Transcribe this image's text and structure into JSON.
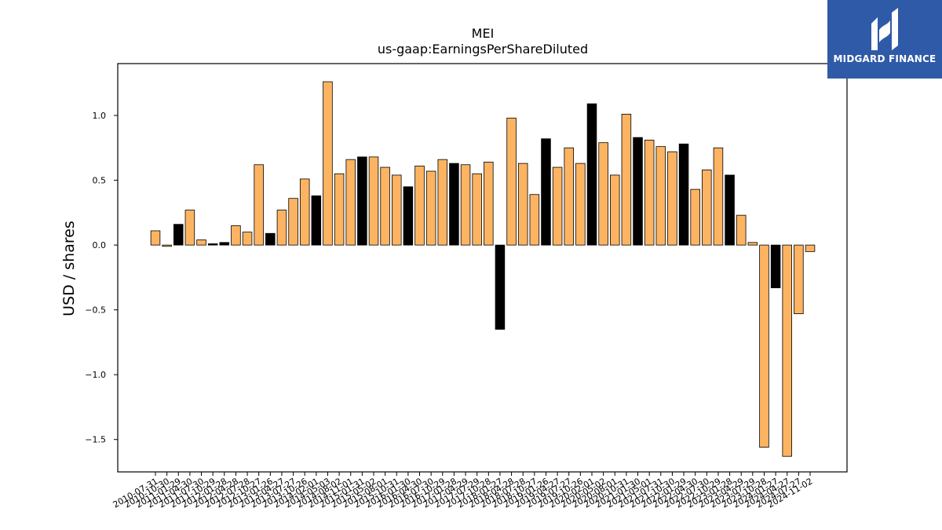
{
  "chart_data": {
    "type": "bar",
    "title": "MEI",
    "subtitle": "us-gaap:EarningsPerShareDiluted",
    "xlabel": "",
    "ylabel": "USD / shares",
    "ylim": [
      -1.75,
      1.4
    ],
    "yticks": [
      -1.5,
      -1.0,
      -0.5,
      0.0,
      0.5,
      1.0
    ],
    "ytick_labels": [
      "−1.5",
      "−1.0",
      "−0.5",
      "0.0",
      "0.5",
      "1.0"
    ],
    "grid": false,
    "colors": {
      "orange": "#fdb462",
      "black": "#000000",
      "edge": "#000000"
    },
    "categories": [
      "2010-07-31",
      "2010-10-30",
      "2011-01-29",
      "2011-04-30",
      "2011-07-30",
      "2011-10-29",
      "2012-01-28",
      "2012-04-28",
      "2012-07-28",
      "2012-10-27",
      "2013-01-26",
      "2013-04-27",
      "2013-07-27",
      "2013-10-26",
      "2014-02-01",
      "2014-05-03",
      "2014-08-02",
      "2014-11-01",
      "2015-01-31",
      "2015-05-02",
      "2015-08-01",
      "2015-10-31",
      "2016-01-30",
      "2016-04-30",
      "2016-07-30",
      "2016-10-29",
      "2017-01-28",
      "2017-04-29",
      "2017-07-29",
      "2017-10-28",
      "2018-01-27",
      "2018-04-28",
      "2018-07-28",
      "2018-10-27",
      "2019-01-26",
      "2019-04-27",
      "2019-07-27",
      "2019-10-26",
      "2020-02-01",
      "2020-05-02",
      "2020-08-01",
      "2020-10-31",
      "2021-01-30",
      "2021-05-01",
      "2021-07-31",
      "2021-10-30",
      "2022-01-29",
      "2022-04-30",
      "2022-07-30",
      "2022-10-29",
      "2023-01-28",
      "2023-04-29",
      "2023-07-29",
      "2023-10-28",
      "2024-01-27",
      "2024-04-27",
      "2024-07-27",
      "2024-11-02"
    ],
    "values": [
      0.11,
      -0.01,
      0.16,
      0.27,
      0.04,
      0.01,
      0.02,
      0.15,
      0.1,
      0.62,
      0.09,
      0.27,
      0.36,
      0.51,
      0.38,
      1.26,
      0.55,
      0.66,
      0.68,
      0.68,
      0.6,
      0.54,
      0.45,
      0.61,
      0.57,
      0.66,
      0.63,
      0.62,
      0.55,
      0.64,
      -0.65,
      0.98,
      0.63,
      0.39,
      0.82,
      0.6,
      0.75,
      0.63,
      1.09,
      0.79,
      0.54,
      1.01,
      0.83,
      0.81,
      0.76,
      0.72,
      0.78,
      0.43,
      0.58,
      0.75,
      0.54,
      0.23,
      0.02,
      -1.56,
      -0.33,
      -1.63,
      -0.53,
      -0.05
    ],
    "bar_colors": [
      "orange",
      "orange",
      "black",
      "orange",
      "orange",
      "black",
      "black",
      "orange",
      "orange",
      "orange",
      "black",
      "orange",
      "orange",
      "orange",
      "black",
      "orange",
      "orange",
      "orange",
      "black",
      "orange",
      "orange",
      "orange",
      "black",
      "orange",
      "orange",
      "orange",
      "black",
      "orange",
      "orange",
      "orange",
      "black",
      "orange",
      "orange",
      "orange",
      "black",
      "orange",
      "orange",
      "orange",
      "black",
      "orange",
      "orange",
      "orange",
      "black",
      "orange",
      "orange",
      "orange",
      "black",
      "orange",
      "orange",
      "orange",
      "black",
      "orange",
      "orange",
      "orange",
      "black",
      "orange",
      "orange",
      "orange"
    ]
  },
  "logo": {
    "text": "MIDGARD FINANCE",
    "color": "#2f5aa8"
  }
}
